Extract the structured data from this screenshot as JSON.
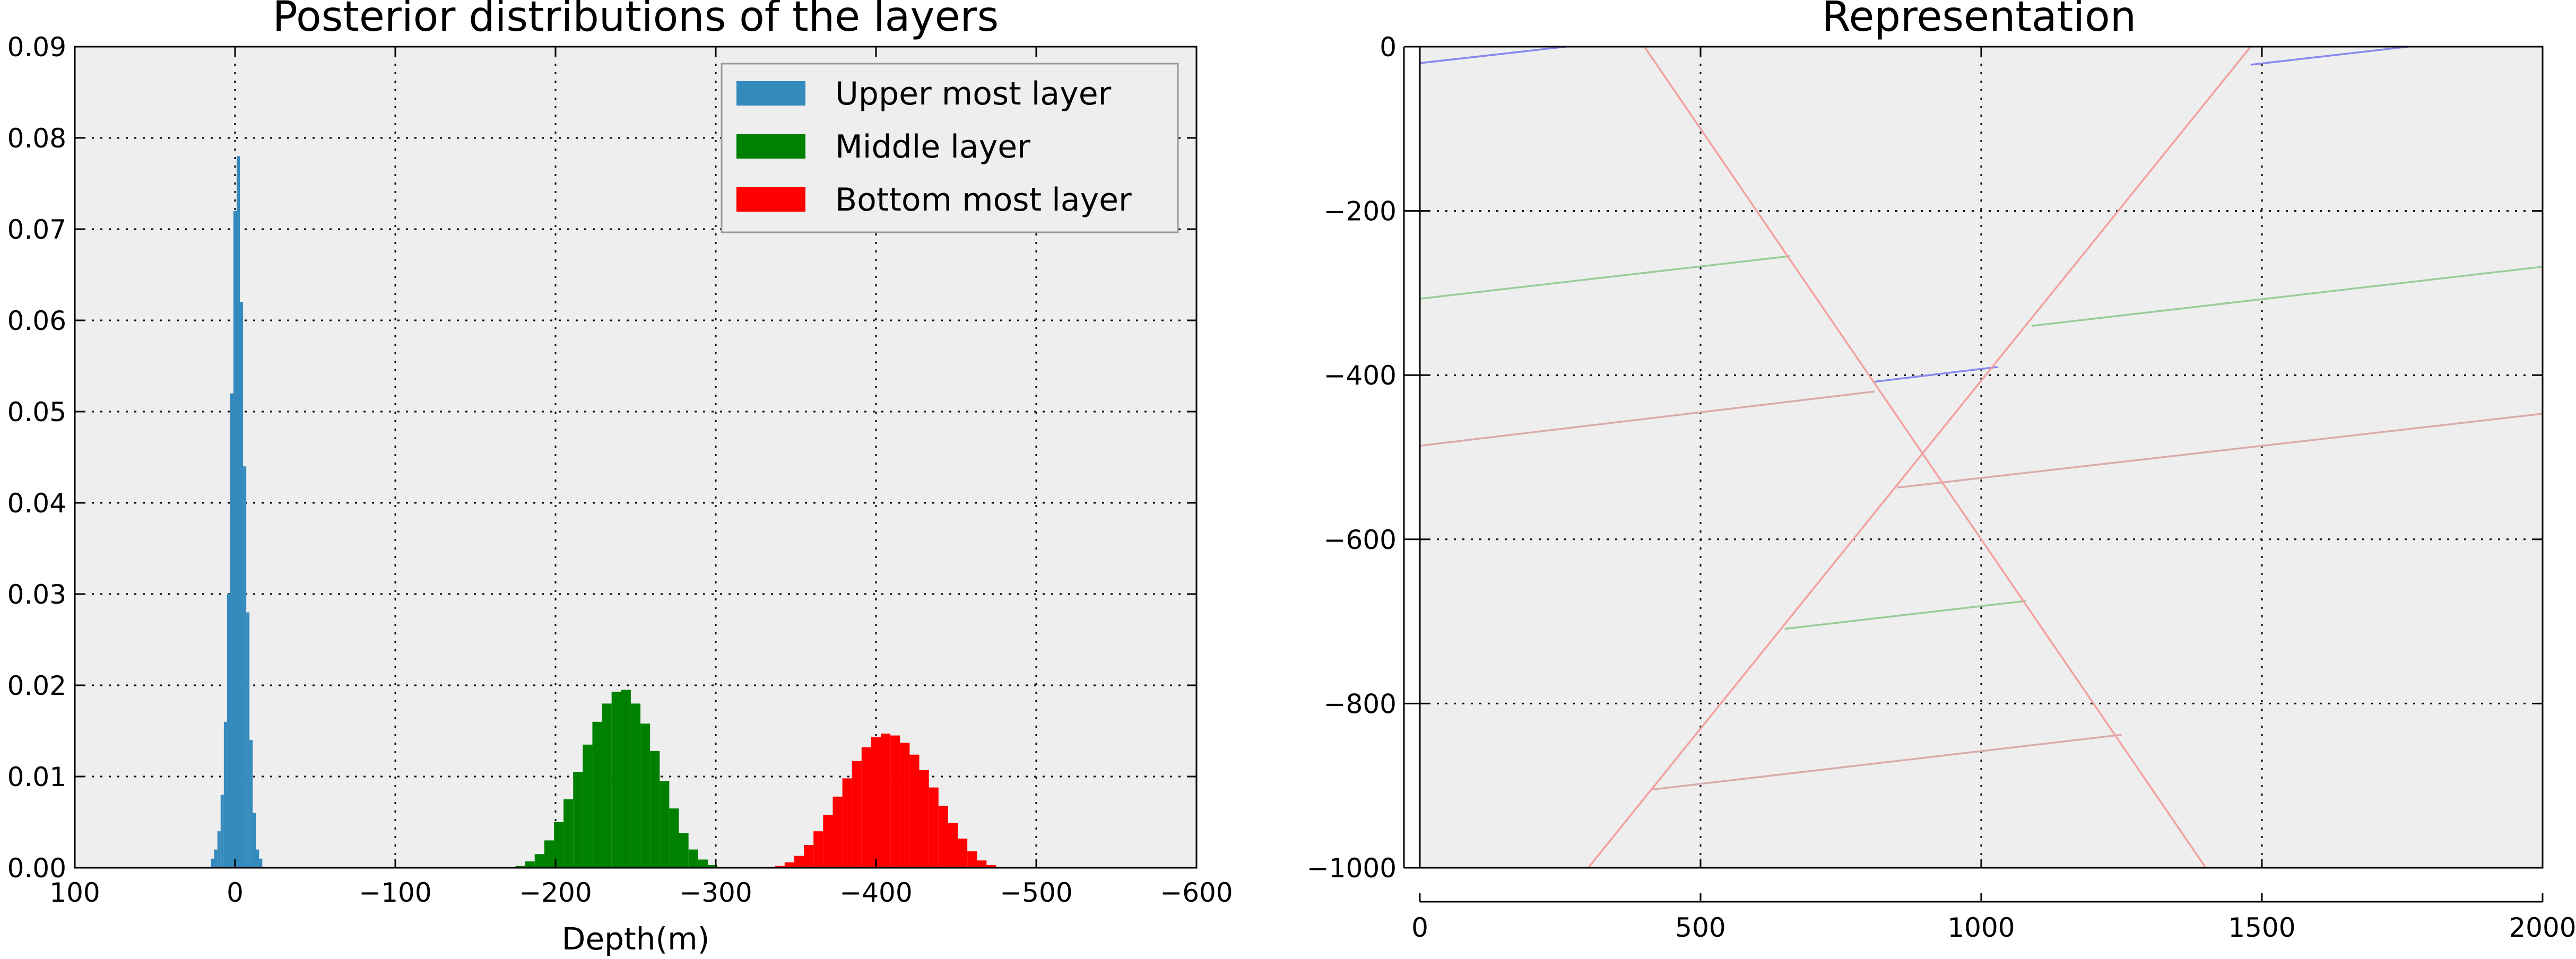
{
  "chart_data": [
    {
      "type": "bar",
      "subtype": "histogram",
      "title": "Posterior distributions of the layers",
      "xlabel": "Depth(m)",
      "ylabel": "",
      "xlim": [
        100,
        -600
      ],
      "ylim": [
        0,
        0.09
      ],
      "xticks": [
        "100",
        "0",
        "−100",
        "−200",
        "−300",
        "−400",
        "−500",
        "−600"
      ],
      "yticks": [
        "0.00",
        "0.01",
        "0.02",
        "0.03",
        "0.04",
        "0.05",
        "0.06",
        "0.07",
        "0.08",
        "0.09"
      ],
      "grid": true,
      "legend_position": "top-right",
      "series": [
        {
          "name": "Upper most layer",
          "color": "#348abd",
          "bin_width": 2,
          "x": [
            14,
            12,
            10,
            8,
            6,
            4,
            2,
            0,
            -2,
            -4,
            -6,
            -8,
            -10,
            -12,
            -14,
            -16
          ],
          "values": [
            0.001,
            0.002,
            0.004,
            0.008,
            0.016,
            0.03,
            0.052,
            0.072,
            0.078,
            0.062,
            0.044,
            0.028,
            0.014,
            0.006,
            0.002,
            0.001
          ]
        },
        {
          "name": "Middle layer",
          "color": "#008000",
          "bin_width": 6,
          "x": [
            -178,
            -184,
            -190,
            -196,
            -202,
            -208,
            -214,
            -220,
            -226,
            -232,
            -238,
            -244,
            -250,
            -256,
            -262,
            -268,
            -274,
            -280,
            -286,
            -292,
            -298
          ],
          "values": [
            0.0002,
            0.0007,
            0.0015,
            0.003,
            0.005,
            0.0075,
            0.0105,
            0.0135,
            0.016,
            0.018,
            0.0193,
            0.0195,
            0.018,
            0.0158,
            0.0128,
            0.0095,
            0.0065,
            0.0038,
            0.002,
            0.0009,
            0.0003
          ]
        },
        {
          "name": "Bottom most layer",
          "color": "#ff0000",
          "bin_width": 6,
          "x": [
            -340,
            -346,
            -352,
            -358,
            -364,
            -370,
            -376,
            -382,
            -388,
            -394,
            -400,
            -406,
            -412,
            -418,
            -424,
            -430,
            -436,
            -442,
            -448,
            -454,
            -460,
            -466,
            -472
          ],
          "values": [
            0.0002,
            0.0006,
            0.0013,
            0.0025,
            0.004,
            0.0058,
            0.0078,
            0.0098,
            0.0117,
            0.0132,
            0.0143,
            0.0147,
            0.0145,
            0.0137,
            0.0124,
            0.0107,
            0.0088,
            0.0068,
            0.0049,
            0.0032,
            0.0018,
            0.0008,
            0.0003
          ]
        }
      ]
    },
    {
      "type": "line",
      "title": "Representation",
      "xlabel": "",
      "ylabel": "",
      "xlim": [
        0,
        2000
      ],
      "ylim": [
        -1000,
        0
      ],
      "xticks": [
        "0",
        "500",
        "1000",
        "1500",
        "2000"
      ],
      "yticks": [
        "0",
        "−200",
        "−400",
        "−600",
        "−800",
        "−1000"
      ],
      "grid": true,
      "series": [
        {
          "color": "#8888ee",
          "points": [
            [
              0,
              -20
            ],
            [
              260,
              0
            ]
          ]
        },
        {
          "color": "#8888ee",
          "points": [
            [
              1480,
              -22
            ],
            [
              1760,
              0
            ]
          ]
        },
        {
          "color": "#8888ee",
          "points": [
            [
              810,
              -408
            ],
            [
              1030,
              -390
            ]
          ]
        },
        {
          "color": "#99cc99",
          "points": [
            [
              0,
              -307
            ],
            [
              660,
              -255
            ]
          ]
        },
        {
          "color": "#99cc99",
          "points": [
            [
              1090,
              -340
            ],
            [
              2000,
              -268
            ]
          ]
        },
        {
          "color": "#99cc99",
          "points": [
            [
              650,
              -709
            ],
            [
              1080,
              -675
            ]
          ]
        },
        {
          "color": "#dcaaaa",
          "points": [
            [
              0,
              -486
            ],
            [
              810,
              -420
            ]
          ]
        },
        {
          "color": "#dcaaaa",
          "points": [
            [
              850,
              -537
            ],
            [
              2000,
              -447
            ]
          ]
        },
        {
          "color": "#dcaaaa",
          "points": [
            [
              410,
              -905
            ],
            [
              1250,
              -838
            ]
          ]
        },
        {
          "color": "#f4a0a0",
          "points": [
            [
              400,
              0
            ],
            [
              1400,
              -1000
            ]
          ]
        },
        {
          "color": "#f4a0a0",
          "points": [
            [
              300,
              -1000
            ],
            [
              1480,
              0
            ]
          ]
        }
      ]
    }
  ]
}
